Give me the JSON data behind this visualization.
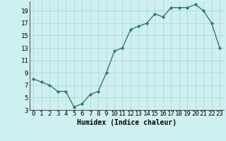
{
  "x": [
    0,
    1,
    2,
    3,
    4,
    5,
    6,
    7,
    8,
    9,
    10,
    11,
    12,
    13,
    14,
    15,
    16,
    17,
    18,
    19,
    20,
    21,
    22,
    23
  ],
  "y": [
    8,
    7.5,
    7,
    6,
    6,
    3.5,
    4,
    5.5,
    6,
    9,
    12.5,
    13,
    16,
    16.5,
    17,
    18.5,
    18,
    19.5,
    19.5,
    19.5,
    20,
    19,
    17,
    13
  ],
  "line_color": "#2e7d6e",
  "marker": "D",
  "marker_size": 2.2,
  "bg_color": "#cff0f0",
  "grid_color": "#b0d8d8",
  "xlabel": "Humidex (Indice chaleur)",
  "xlim": [
    -0.5,
    23.5
  ],
  "ylim": [
    3,
    20.5
  ],
  "yticks": [
    3,
    5,
    7,
    9,
    11,
    13,
    15,
    17,
    19
  ],
  "xticks": [
    0,
    1,
    2,
    3,
    4,
    5,
    6,
    7,
    8,
    9,
    10,
    11,
    12,
    13,
    14,
    15,
    16,
    17,
    18,
    19,
    20,
    21,
    22,
    23
  ],
  "xlabel_fontsize": 7,
  "tick_fontsize": 6.5,
  "line_width": 1.0
}
